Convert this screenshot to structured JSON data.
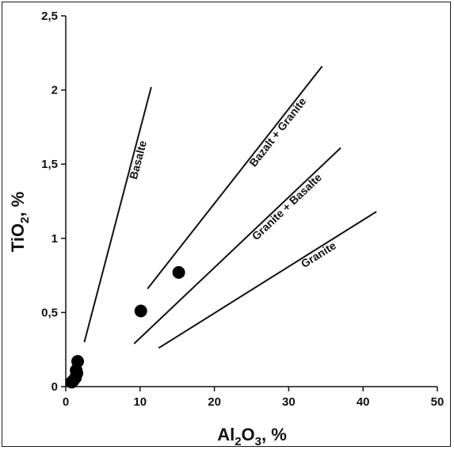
{
  "chart_data": {
    "type": "scatter",
    "title": "",
    "xlabel": {
      "main": "Al",
      "sub1": "2",
      "mid": "O",
      "sub2": "3",
      "tail": ", %"
    },
    "ylabel": {
      "main": "TiO",
      "sub": "2",
      "tail": ", %"
    },
    "xlim": [
      0,
      50
    ],
    "ylim": [
      0,
      2.5
    ],
    "x_ticks": [
      0,
      10,
      20,
      30,
      40,
      50
    ],
    "x_tick_labels": [
      "0",
      "10",
      "20",
      "30",
      "40",
      "50"
    ],
    "y_ticks": [
      0,
      0.5,
      1,
      1.5,
      2,
      2.5
    ],
    "y_tick_labels": [
      "0",
      "0,5",
      "1",
      "1,5",
      "2",
      "2,5"
    ],
    "grid": false,
    "points": [
      {
        "x": 0.8,
        "y": 0.03
      },
      {
        "x": 1.0,
        "y": 0.04
      },
      {
        "x": 1.3,
        "y": 0.06
      },
      {
        "x": 1.5,
        "y": 0.09
      },
      {
        "x": 1.4,
        "y": 0.11
      },
      {
        "x": 1.6,
        "y": 0.17
      },
      {
        "x": 10.1,
        "y": 0.51
      },
      {
        "x": 15.2,
        "y": 0.77
      }
    ],
    "reference_lines": [
      {
        "label": "Basalte",
        "x1": 2.5,
        "y1": 0.3,
        "x2": 11.5,
        "y2": 2.02
      },
      {
        "label": "Bazalt + Granite",
        "x1": 11.0,
        "y1": 0.66,
        "x2": 34.5,
        "y2": 2.16
      },
      {
        "label": "Granite + Basalte",
        "x1": 9.2,
        "y1": 0.29,
        "x2": 37.0,
        "y2": 1.61
      },
      {
        "label": "Granite",
        "x1": 12.5,
        "y1": 0.26,
        "x2": 41.8,
        "y2": 1.18
      }
    ]
  }
}
